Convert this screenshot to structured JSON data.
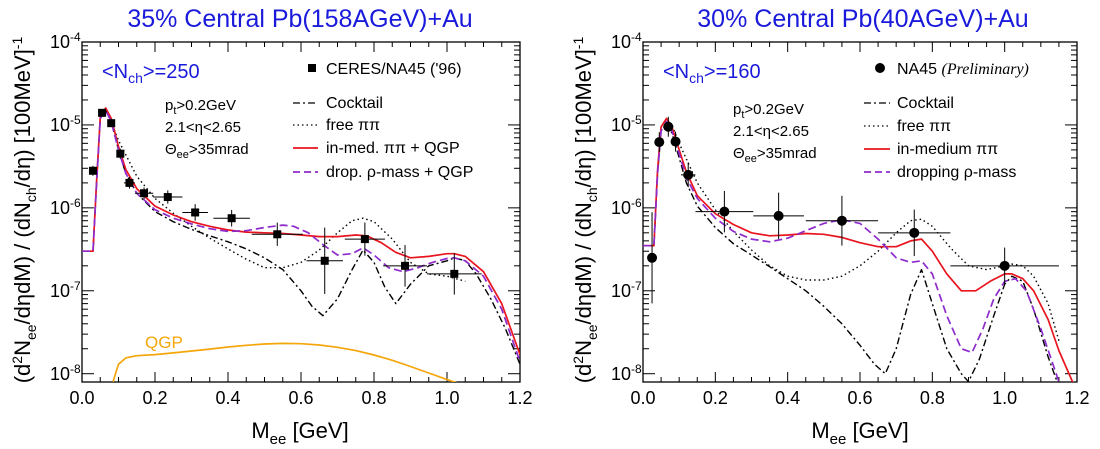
{
  "colors": {
    "title": "#1a1adb",
    "cocktail": "#000000",
    "free": "#000000",
    "inmed": "#e8141e",
    "drop": "#8e2bcc",
    "qgp": "#f5a60a",
    "data": "#000000"
  },
  "chart_data": [
    {
      "type": "line",
      "title": "35% Central Pb(158AGeV)+Au",
      "xlabel": "M_ee [GeV]",
      "ylabel": "(d²N_ee/dηdM) / (dN_ch/dη)  [100MeV]⁻¹",
      "xlim": [
        0.0,
        1.2
      ],
      "ylim_log10": [
        -8.1,
        -4.0
      ],
      "y_scale": "log",
      "xticks": [
        "0.0",
        "0.2",
        "0.4",
        "0.6",
        "0.8",
        "1.0",
        "1.2"
      ],
      "nch_label": "<N_ch>=250",
      "cuts": [
        "p_t>0.2GeV",
        "2.1<η<2.65",
        "Θ_ee>35mrad"
      ],
      "legend": {
        "data": "CERES/NA45 ('96)",
        "cocktail": "Cocktail",
        "free": "free ππ",
        "inmed": "in-med. ππ + QGP",
        "drop": "drop. ρ-mass + QGP"
      },
      "qgp_label": "QGP",
      "data_marker": "square",
      "data_points": [
        {
          "x": 0.03,
          "y": 2.8e-06,
          "xerr": 0.01,
          "yerr_log": 0.06
        },
        {
          "x": 0.055,
          "y": 1.4e-05,
          "xerr": 0.01,
          "yerr_log": 0.04
        },
        {
          "x": 0.08,
          "y": 1.05e-05,
          "xerr": 0.01,
          "yerr_log": 0.04
        },
        {
          "x": 0.105,
          "y": 4.5e-06,
          "xerr": 0.01,
          "yerr_log": 0.06
        },
        {
          "x": 0.13,
          "y": 2e-06,
          "xerr": 0.015,
          "yerr_log": 0.07
        },
        {
          "x": 0.17,
          "y": 1.5e-06,
          "xerr": 0.025,
          "yerr_log": 0.07
        },
        {
          "x": 0.235,
          "y": 1.35e-06,
          "xerr": 0.04,
          "yerr_log": 0.08
        },
        {
          "x": 0.31,
          "y": 8.8e-07,
          "xerr": 0.035,
          "yerr_log": 0.1
        },
        {
          "x": 0.41,
          "y": 7.5e-07,
          "xerr": 0.05,
          "yerr_log": 0.1
        },
        {
          "x": 0.535,
          "y": 4.8e-07,
          "xerr": 0.07,
          "yerr_log": 0.14
        },
        {
          "x": 0.665,
          "y": 2.3e-07,
          "xerr": 0.05,
          "yerr_log": 0.4
        },
        {
          "x": 0.775,
          "y": 4.2e-07,
          "xerr": 0.055,
          "yerr_log": 0.2
        },
        {
          "x": 0.885,
          "y": 2e-07,
          "xerr": 0.06,
          "yerr_log": 0.25
        },
        {
          "x": 1.02,
          "y": 1.6e-07,
          "xerr": 0.075,
          "yerr_log": 0.25
        }
      ],
      "series": [
        {
          "key": "cocktail",
          "style": "dashdot",
          "x": [
            0,
            0.02,
            0.03,
            0.04,
            0.05,
            0.065,
            0.08,
            0.1,
            0.12,
            0.15,
            0.2,
            0.25,
            0.3,
            0.35,
            0.4,
            0.45,
            0.5,
            0.55,
            0.6,
            0.63,
            0.66,
            0.7,
            0.74,
            0.77,
            0.8,
            0.83,
            0.86,
            0.9,
            0.95,
            1.0,
            1.02,
            1.05,
            1.08,
            1.12,
            1.16,
            1.2
          ],
          "y": [
            3e-07,
            3e-07,
            3e-07,
            2e-06,
            1.2e-05,
            1.5e-05,
            1.1e-05,
            5e-06,
            2.6e-06,
            1.5e-06,
            9e-07,
            6.8e-07,
            5.5e-07,
            4.6e-07,
            3.9e-07,
            3.2e-07,
            2.5e-07,
            1.8e-07,
            1e-07,
            6.5e-08,
            5e-08,
            8e-08,
            1.8e-07,
            3.1e-07,
            2.2e-07,
            1.1e-07,
            7e-08,
            1.2e-07,
            2e-07,
            2.3e-07,
            2.5e-07,
            2.3e-07,
            1.6e-07,
            8e-08,
            3.5e-08,
            1.3e-08
          ]
        },
        {
          "key": "free",
          "style": "dotted",
          "x": [
            0.07,
            0.1,
            0.15,
            0.2,
            0.25,
            0.3,
            0.35,
            0.4,
            0.45,
            0.5,
            0.55,
            0.6,
            0.65,
            0.7,
            0.74,
            0.77,
            0.8,
            0.85,
            0.9,
            0.95,
            1.0,
            1.05
          ],
          "y": [
            1.4e-05,
            6.5e-06,
            2.4e-06,
            1.3e-06,
            8.6e-07,
            6e-07,
            4.3e-07,
            3.2e-07,
            2.4e-07,
            1.9e-07,
            1.9e-07,
            2.2e-07,
            3.1e-07,
            5e-07,
            7e-07,
            7.5e-07,
            6.8e-07,
            4.2e-07,
            2.2e-07,
            1.6e-07,
            1.5e-07,
            1.3e-07
          ]
        },
        {
          "key": "inmed",
          "style": "solid",
          "x": [
            0,
            0.02,
            0.03,
            0.04,
            0.05,
            0.065,
            0.08,
            0.1,
            0.12,
            0.15,
            0.2,
            0.25,
            0.3,
            0.35,
            0.4,
            0.45,
            0.5,
            0.55,
            0.6,
            0.65,
            0.7,
            0.75,
            0.78,
            0.82,
            0.86,
            0.9,
            0.95,
            1.0,
            1.02,
            1.05,
            1.1,
            1.15,
            1.2
          ],
          "y": [
            3e-07,
            3e-07,
            3e-07,
            2.1e-06,
            1.25e-05,
            1.6e-05,
            1.2e-05,
            5.5e-06,
            2.9e-06,
            1.7e-06,
            1.05e-06,
            8.2e-07,
            6.8e-07,
            6e-07,
            5.4e-07,
            5.1e-07,
            5e-07,
            4.9e-07,
            4.7e-07,
            4.5e-07,
            4.5e-07,
            4.7e-07,
            4.6e-07,
            3.8e-07,
            2.9e-07,
            2.5e-07,
            2.6e-07,
            2.8e-07,
            2.8e-07,
            2.6e-07,
            1.7e-07,
            7e-08,
            1.7e-08
          ]
        },
        {
          "key": "drop",
          "style": "dashed",
          "x": [
            0,
            0.02,
            0.03,
            0.04,
            0.05,
            0.065,
            0.08,
            0.1,
            0.12,
            0.15,
            0.2,
            0.25,
            0.3,
            0.35,
            0.4,
            0.45,
            0.5,
            0.55,
            0.58,
            0.62,
            0.66,
            0.7,
            0.74,
            0.77,
            0.8,
            0.84,
            0.88,
            0.92,
            0.96,
            1.0,
            1.02,
            1.05,
            1.1,
            1.15,
            1.2
          ],
          "y": [
            3e-07,
            3e-07,
            3e-07,
            2e-06,
            1.2e-05,
            1.5e-05,
            1.1e-05,
            5e-06,
            2.6e-06,
            1.5e-06,
            9.5e-07,
            7.5e-07,
            6.4e-07,
            5.6e-07,
            5.2e-07,
            5.3e-07,
            5.8e-07,
            6.2e-07,
            6e-07,
            5e-07,
            3.6e-07,
            2.7e-07,
            2.8e-07,
            3.3e-07,
            2.7e-07,
            1.9e-07,
            1.7e-07,
            1.9e-07,
            2.2e-07,
            2.45e-07,
            2.5e-07,
            2.3e-07,
            1.5e-07,
            6e-08,
            1.4e-08
          ]
        },
        {
          "key": "qgp",
          "style": "solid",
          "x": [
            0.085,
            0.1,
            0.12,
            0.15,
            0.2,
            0.25,
            0.3,
            0.35,
            0.4,
            0.45,
            0.5,
            0.55,
            0.6,
            0.65,
            0.7,
            0.75,
            0.8,
            0.85,
            0.9,
            0.95,
            1.0,
            1.05
          ],
          "y": [
            8e-09,
            1.3e-08,
            1.55e-08,
            1.65e-08,
            1.7e-08,
            1.78e-08,
            1.88e-08,
            1.98e-08,
            2.1e-08,
            2.2e-08,
            2.28e-08,
            2.32e-08,
            2.3e-08,
            2.22e-08,
            2.08e-08,
            1.9e-08,
            1.68e-08,
            1.45e-08,
            1.22e-08,
            1.02e-08,
            8.5e-09,
            7.2e-09
          ]
        }
      ]
    },
    {
      "type": "line",
      "title": "30% Central Pb(40AGeV)+Au",
      "xlabel": "M_ee [GeV]",
      "ylabel": "(d²N_ee/dηdM) / (dN_ch/dη)  [100MeV]⁻¹",
      "xlim": [
        0.0,
        1.2
      ],
      "ylim_log10": [
        -8.1,
        -4.0
      ],
      "y_scale": "log",
      "xticks": [
        "0.0",
        "0.2",
        "0.4",
        "0.6",
        "0.8",
        "1.0",
        "1.2"
      ],
      "nch_label": "<N_ch>=160",
      "cuts": [
        "p_t>0.2GeV",
        "2.1<η<2.65",
        "Θ_ee>35mrad"
      ],
      "legend": {
        "data": "NA45",
        "data_note": "(Preliminary)",
        "cocktail": "Cocktail",
        "free": "free ππ",
        "inmed": "in-medium ππ",
        "drop": "dropping ρ-mass"
      },
      "data_marker": "circle",
      "data_points": [
        {
          "x": 0.025,
          "y": 2.5e-07,
          "xerr": 0.01,
          "yerr_log": 0.55
        },
        {
          "x": 0.045,
          "y": 6.2e-06,
          "xerr": 0.01,
          "yerr_log": 0.12
        },
        {
          "x": 0.07,
          "y": 9.5e-06,
          "xerr": 0.01,
          "yerr_log": 0.12
        },
        {
          "x": 0.09,
          "y": 6.3e-06,
          "xerr": 0.01,
          "yerr_log": 0.12
        },
        {
          "x": 0.125,
          "y": 2.5e-06,
          "xerr": 0.02,
          "yerr_log": 0.15
        },
        {
          "x": 0.225,
          "y": 9e-07,
          "xerr": 0.08,
          "yerr_log": 0.25
        },
        {
          "x": 0.375,
          "y": 8e-07,
          "xerr": 0.07,
          "yerr_log": 0.28
        },
        {
          "x": 0.55,
          "y": 7e-07,
          "xerr": 0.1,
          "yerr_log": 0.3
        },
        {
          "x": 0.75,
          "y": 5e-07,
          "xerr": 0.1,
          "yerr_log": 0.28
        },
        {
          "x": 1.0,
          "y": 2e-07,
          "xerr": 0.15,
          "yerr_log": 0.22
        }
      ],
      "series": [
        {
          "key": "cocktail",
          "style": "dashdot",
          "x": [
            0,
            0.02,
            0.03,
            0.04,
            0.05,
            0.065,
            0.08,
            0.1,
            0.12,
            0.15,
            0.2,
            0.25,
            0.3,
            0.35,
            0.4,
            0.45,
            0.5,
            0.55,
            0.6,
            0.64,
            0.67,
            0.7,
            0.74,
            0.77,
            0.8,
            0.84,
            0.88,
            0.9,
            0.93,
            0.97,
            1.0,
            1.02,
            1.05,
            1.08,
            1.12,
            1.15
          ],
          "y": [
            3.5e-07,
            3.5e-07,
            3.5e-07,
            2.5e-06,
            8.5e-06,
            1.05e-05,
            8e-06,
            4e-06,
            2e-06,
            1.05e-06,
            5.8e-07,
            3.7e-07,
            2.7e-07,
            1.95e-07,
            1.4e-07,
            1e-07,
            6.5e-08,
            4e-08,
            2.2e-08,
            1.3e-08,
            1e-08,
            2e-08,
            9e-08,
            1.8e-07,
            7e-08,
            2e-08,
            1e-08,
            8e-09,
            1.5e-08,
            5e-08,
            1.2e-07,
            1.5e-07,
            1.3e-07,
            6e-08,
            1.6e-08,
            7e-09
          ]
        },
        {
          "key": "free",
          "style": "dotted",
          "x": [
            0.06,
            0.08,
            0.1,
            0.15,
            0.2,
            0.25,
            0.3,
            0.35,
            0.4,
            0.45,
            0.5,
            0.55,
            0.6,
            0.65,
            0.7,
            0.74,
            0.77,
            0.8,
            0.85,
            0.9,
            0.95,
            1.0,
            1.02,
            1.05,
            1.08,
            1.12,
            1.15
          ],
          "y": [
            1.1e-05,
            1e-05,
            6e-06,
            2e-06,
            9.5e-07,
            5.2e-07,
            3.1e-07,
            2e-07,
            1.5e-07,
            1.35e-07,
            1.35e-07,
            1.5e-07,
            2e-07,
            3e-07,
            5e-07,
            7e-07,
            7.3e-07,
            6e-07,
            3.3e-07,
            2e-07,
            1.8e-07,
            2e-07,
            2.1e-07,
            2e-07,
            1.5e-07,
            7e-08,
            2.5e-08
          ]
        },
        {
          "key": "inmed",
          "style": "solid",
          "x": [
            0,
            0.02,
            0.03,
            0.04,
            0.05,
            0.065,
            0.08,
            0.1,
            0.12,
            0.15,
            0.2,
            0.25,
            0.3,
            0.35,
            0.4,
            0.45,
            0.5,
            0.55,
            0.6,
            0.65,
            0.7,
            0.74,
            0.77,
            0.8,
            0.84,
            0.88,
            0.92,
            0.96,
            1.0,
            1.02,
            1.05,
            1.08,
            1.12,
            1.15,
            1.2
          ],
          "y": [
            3.5e-07,
            3.5e-07,
            3.5e-07,
            2.8e-06,
            9.5e-06,
            1.2e-05,
            9.5e-06,
            5e-06,
            2.7e-06,
            1.4e-06,
            8.5e-07,
            6.3e-07,
            5e-07,
            4.6e-07,
            4.7e-07,
            4.9e-07,
            4.8e-07,
            4.4e-07,
            3.8e-07,
            3.4e-07,
            3.4e-07,
            4e-07,
            4.2e-07,
            3e-07,
            1.6e-07,
            1e-07,
            1e-07,
            1.3e-07,
            1.6e-07,
            1.6e-07,
            1.4e-07,
            1e-07,
            4.5e-08,
            1.9e-08,
            6e-09
          ]
        },
        {
          "key": "drop",
          "style": "dashed",
          "x": [
            0,
            0.02,
            0.03,
            0.04,
            0.05,
            0.065,
            0.08,
            0.1,
            0.12,
            0.15,
            0.2,
            0.25,
            0.3,
            0.35,
            0.4,
            0.45,
            0.5,
            0.55,
            0.6,
            0.65,
            0.7,
            0.74,
            0.77,
            0.8,
            0.84,
            0.88,
            0.91,
            0.94,
            0.97,
            1.0,
            1.03,
            1.06,
            1.1,
            1.15
          ],
          "y": [
            3.5e-07,
            3.5e-07,
            3.5e-07,
            2.5e-06,
            8.5e-06,
            1.1e-05,
            8.5e-06,
            4.5e-06,
            2.3e-06,
            1.3e-06,
            7.5e-07,
            5.2e-07,
            4.2e-07,
            3.9e-07,
            4.3e-07,
            5.3e-07,
            6.5e-07,
            7.2e-07,
            6.5e-07,
            4.2e-07,
            2.5e-07,
            2.2e-07,
            2.3e-07,
            1.6e-07,
            5e-08,
            2e-08,
            1.8e-08,
            3.5e-08,
            8e-08,
            1.3e-07,
            1.4e-07,
            1e-07,
            3.5e-08,
            8e-09
          ]
        }
      ]
    }
  ]
}
